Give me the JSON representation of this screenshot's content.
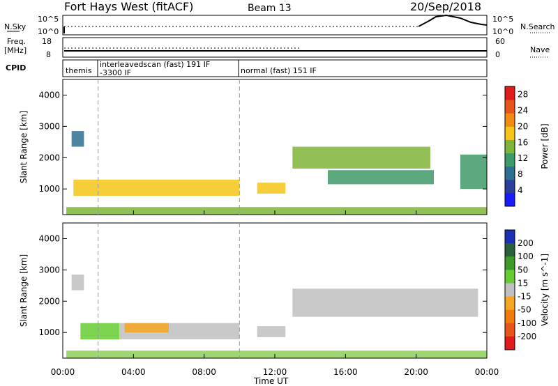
{
  "header": {
    "station": "Fort Hays West (fitACF)",
    "beam": "Beam 13",
    "date": "20/Sep/2018"
  },
  "top_panels": {
    "nsky_label": "N.Sky",
    "nsky_ticks": [
      "10^5",
      "10^0"
    ],
    "nsearch_label": "N.Search",
    "nsearch_ticks": [
      "10^5",
      "10^0"
    ],
    "freq_label": "Freq.",
    "freq_unit": "[MHz]",
    "freq_ticks": [
      "18",
      "8"
    ],
    "nave_label": "Nave",
    "nave_ticks": [
      "60",
      "0"
    ],
    "cpid_label": "CPID",
    "cpid_segments": [
      {
        "start": 0,
        "end": 2,
        "label": "themis"
      },
      {
        "start": 2,
        "end": 10,
        "label": "interleavedscan (fast) 191 IF",
        "label2": "-3300 IF"
      },
      {
        "start": 10,
        "end": 24,
        "label": "normal (fast) 151 IF"
      }
    ]
  },
  "chart_data": [
    {
      "type": "heatmap",
      "name": "power-panel",
      "ylabel": "Slant Range [km]",
      "xlabel": "Time UT",
      "x_range_hours": [
        0,
        24
      ],
      "ylim_km": [
        180,
        4500
      ],
      "yticks": [
        1000,
        2000,
        3000,
        4000
      ],
      "xticks": [
        "00:00",
        "04:00",
        "08:00",
        "12:00",
        "16:00",
        "20:00",
        "00:00"
      ],
      "colorbar": {
        "label": "Power [dB]",
        "ticks": [
          4,
          8,
          12,
          16,
          20,
          24,
          28
        ],
        "range": [
          0,
          30
        ],
        "colors": [
          "#1a1aff",
          "#2c3d9c",
          "#2e6f8f",
          "#3f9a6a",
          "#7fb53a",
          "#f5c518",
          "#f08c12",
          "#e8551a",
          "#e01c1c"
        ]
      },
      "regions": [
        {
          "t0": 0.5,
          "t1": 1.2,
          "r0": 2350,
          "r1": 2850,
          "level": 8
        },
        {
          "t0": 0.6,
          "t1": 10.0,
          "r0": 780,
          "r1": 1300,
          "level": 20
        },
        {
          "t0": 11.0,
          "t1": 12.6,
          "r0": 850,
          "r1": 1200,
          "level": 20
        },
        {
          "t0": 0.2,
          "t1": 24,
          "r0": 190,
          "r1": 420,
          "level": 14
        },
        {
          "t0": 13.0,
          "t1": 20.8,
          "r0": 1650,
          "r1": 2350,
          "level": 14
        },
        {
          "t0": 15.0,
          "t1": 21.0,
          "r0": 1150,
          "r1": 1600,
          "level": 12
        },
        {
          "t0": 22.5,
          "t1": 24,
          "r0": 1000,
          "r1": 2100,
          "level": 12
        }
      ]
    },
    {
      "type": "heatmap",
      "name": "velocity-panel",
      "ylabel": "Slant Range [km]",
      "xlabel": "Time UT",
      "x_range_hours": [
        0,
        24
      ],
      "ylim_km": [
        180,
        4500
      ],
      "yticks": [
        1000,
        2000,
        3000,
        4000
      ],
      "xticks": [
        "00:00",
        "04:00",
        "08:00",
        "12:00",
        "16:00",
        "20:00",
        "00:00"
      ],
      "colorbar": {
        "label": "Velocity [m s^-1]",
        "ticks": [
          "200",
          "100",
          "50",
          "15",
          "-15",
          "-50",
          "-100",
          "-200"
        ],
        "colors": [
          "#1d2fb5",
          "#2b5f3b",
          "#3f9a2a",
          "#66cc33",
          "#c0c0c0",
          "#f5a623",
          "#f07d0a",
          "#e8551a",
          "#e01c1c"
        ]
      },
      "regions": [
        {
          "t0": 0.5,
          "t1": 1.2,
          "r0": 2350,
          "r1": 2850,
          "color": "#c0c0c0"
        },
        {
          "t0": 1.0,
          "t1": 3.2,
          "r0": 780,
          "r1": 1300,
          "color": "#66cc33"
        },
        {
          "t0": 3.2,
          "t1": 10.0,
          "r0": 780,
          "r1": 1300,
          "color": "#c0c0c0"
        },
        {
          "t0": 3.5,
          "t1": 6.0,
          "r0": 1000,
          "r1": 1300,
          "color": "#f5a623"
        },
        {
          "t0": 11.0,
          "t1": 12.6,
          "r0": 850,
          "r1": 1200,
          "color": "#c0c0c0"
        },
        {
          "t0": 0.2,
          "t1": 24,
          "r0": 190,
          "r1": 420,
          "color": "#8ccf5a"
        },
        {
          "t0": 13.0,
          "t1": 23.5,
          "r0": 1500,
          "r1": 2400,
          "color": "#c0c0c0"
        }
      ]
    }
  ],
  "footer": {
    "xlabel": "Time UT"
  }
}
